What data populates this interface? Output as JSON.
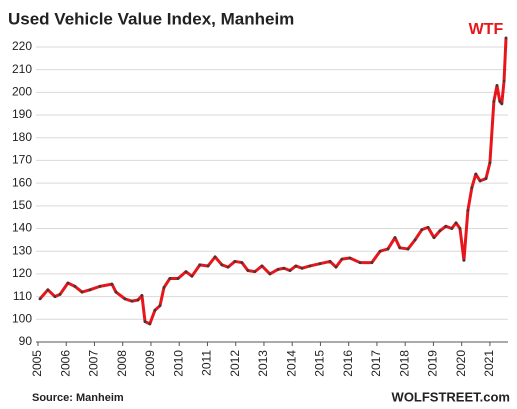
{
  "chart_data": {
    "type": "line",
    "title": "Used Vehicle Value Index, Manheim",
    "annotation": "WTF",
    "source": "Source: Manheim",
    "credit": "WOLFSTREET.com",
    "x": [
      2005.07,
      2005.35,
      2005.6,
      2005.78,
      2006.06,
      2006.31,
      2006.56,
      2006.84,
      2007.19,
      2007.62,
      2007.76,
      2008.08,
      2008.33,
      2008.54,
      2008.68,
      2008.79,
      2008.96,
      2009.14,
      2009.32,
      2009.46,
      2009.67,
      2009.96,
      2010.24,
      2010.45,
      2010.73,
      2011.02,
      2011.27,
      2011.51,
      2011.73,
      2011.97,
      2012.22,
      2012.43,
      2012.68,
      2012.93,
      2013.21,
      2013.5,
      2013.71,
      2013.92,
      2014.13,
      2014.35,
      2014.63,
      2014.98,
      2015.34,
      2015.55,
      2015.76,
      2016.04,
      2016.4,
      2016.82,
      2017.11,
      2017.39,
      2017.64,
      2017.81,
      2018.1,
      2018.35,
      2018.59,
      2018.81,
      2019.02,
      2019.23,
      2019.44,
      2019.65,
      2019.8,
      2019.94,
      2020.08,
      2020.22,
      2020.36,
      2020.5,
      2020.65,
      2020.86,
      2021,
      2021.14,
      2021.25,
      2021.35,
      2021.42,
      2021.5,
      2021.57
    ],
    "series": [
      {
        "color": "#e8161b",
        "marker_color": "#3a3a3a",
        "values": [
          109,
          113,
          110,
          111,
          116,
          114.5,
          112,
          113,
          114.5,
          115.5,
          112,
          109,
          108,
          108.5,
          110.5,
          99,
          98,
          104,
          106,
          114,
          118,
          118,
          121,
          119,
          124,
          123.5,
          127.5,
          124,
          123,
          125.5,
          125,
          121.5,
          121,
          123.5,
          120,
          122,
          122.5,
          121.5,
          123.5,
          122.5,
          123.5,
          124.5,
          125.5,
          123,
          126.5,
          127,
          125,
          125,
          130,
          131,
          136,
          131.5,
          131,
          135,
          139.5,
          140.5,
          136,
          139,
          141,
          140,
          142.5,
          140,
          126,
          148,
          158,
          164,
          161,
          162,
          169,
          196,
          203,
          196,
          195,
          205,
          224
        ]
      }
    ],
    "xlim": [
      2004.93,
      2021.64
    ],
    "xticks": [
      2005,
      2006,
      2007,
      2008,
      2009,
      2010,
      2011,
      2012,
      2013,
      2014,
      2015,
      2016,
      2017,
      2018,
      2019,
      2020,
      2021
    ],
    "ylim": [
      90,
      225
    ],
    "yticks": [
      90,
      100,
      110,
      120,
      130,
      140,
      150,
      160,
      170,
      180,
      190,
      200,
      210,
      220
    ],
    "grid": true
  }
}
